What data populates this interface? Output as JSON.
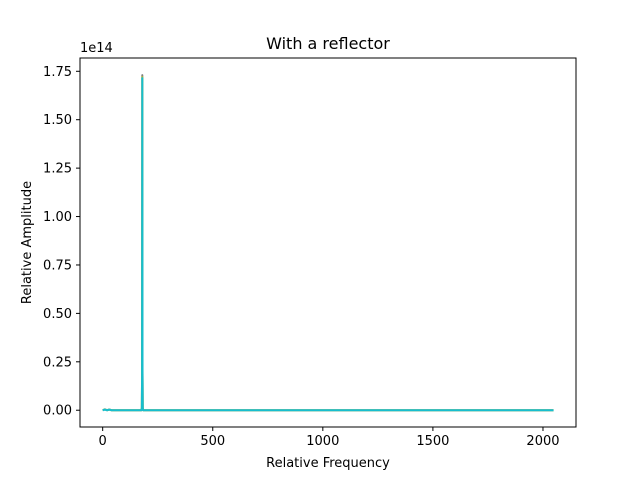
{
  "chart_data": {
    "type": "line",
    "title": "With a reflector",
    "xlabel": "Relative Frequency",
    "ylabel": "Relative Amplitude",
    "y_scale_label": "1e14",
    "y_scale": 100000000000000.0,
    "xlim": [
      -103,
      2150
    ],
    "ylim": [
      -0.0866,
      1.8186
    ],
    "xticks": [
      0,
      500,
      1000,
      1500,
      2000
    ],
    "xtick_labels": [
      "0",
      "500",
      "1000",
      "1500",
      "2000"
    ],
    "yticks": [
      0.0,
      0.25,
      0.5,
      0.75,
      1.0,
      1.25,
      1.5,
      1.75
    ],
    "ytick_labels": [
      "0.00",
      "0.25",
      "0.50",
      "0.75",
      "1.00",
      "1.25",
      "1.50",
      "1.75"
    ],
    "grid": false,
    "legend": "none",
    "series": [
      {
        "color": "#7f7f7f",
        "x": [
          0,
          10,
          20,
          30,
          40,
          176,
          178,
          179,
          180,
          181,
          182,
          184,
          190,
          2048
        ],
        "y": [
          0.0,
          0.005,
          0.0,
          0.004,
          0.0,
          0.0,
          0.012,
          0.2,
          1.73,
          0.2,
          0.012,
          0.0,
          0.0,
          0.0
        ]
      },
      {
        "color": "#bcbd22",
        "x": [
          0,
          10,
          20,
          30,
          40,
          176,
          178,
          179,
          180,
          181,
          182,
          184,
          190,
          2048
        ],
        "y": [
          0.0,
          0.004,
          0.0,
          0.003,
          0.0,
          0.0,
          0.011,
          0.19,
          1.72,
          0.19,
          0.011,
          0.0,
          0.0,
          0.0
        ]
      },
      {
        "color": "#17becf",
        "x": [
          0,
          10,
          20,
          30,
          40,
          176,
          178,
          179,
          180,
          181,
          182,
          184,
          190,
          2048
        ],
        "y": [
          0.0,
          0.003,
          0.0,
          0.003,
          0.0,
          0.0,
          0.01,
          0.18,
          1.715,
          0.18,
          0.01,
          0.0,
          0.0,
          0.0
        ]
      }
    ]
  }
}
